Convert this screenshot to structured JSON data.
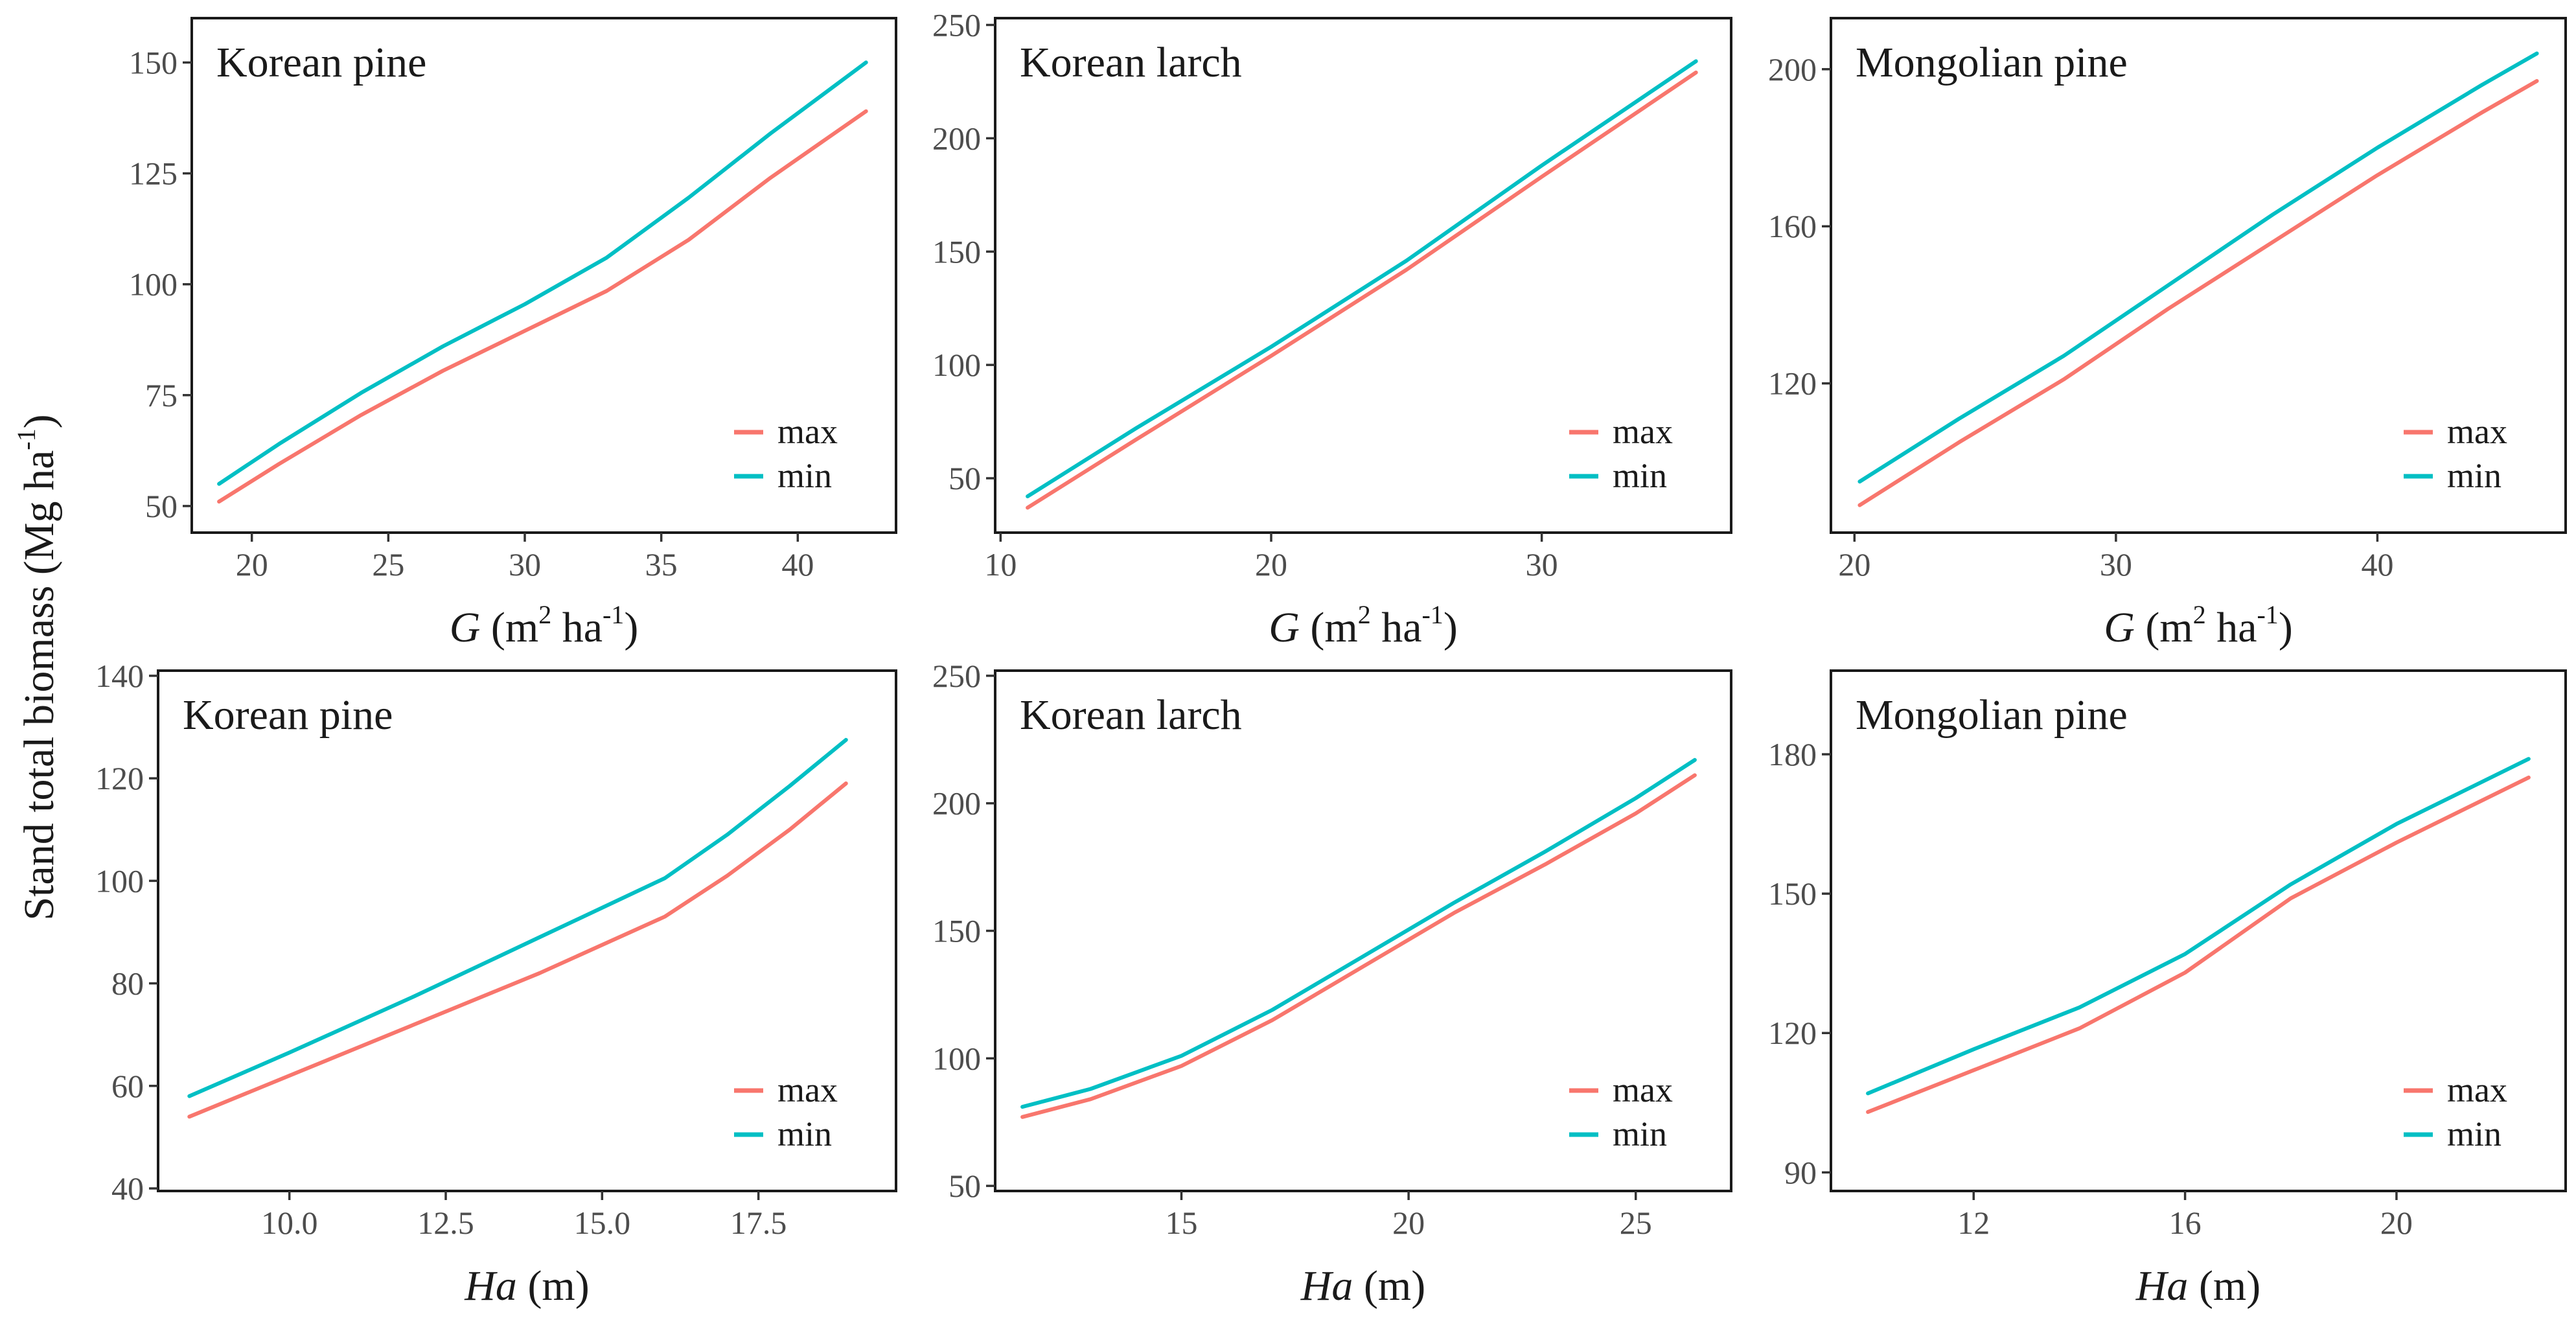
{
  "figure": {
    "ylabel_main": "Stand total biomass  (Mg ha",
    "ylabel_sup": "-1",
    "ylabel_close": ")"
  },
  "colors": {
    "max": "#F8766D",
    "min": "#00BFC4"
  },
  "chart_data": [
    {
      "type": "line",
      "title": "Korean pine",
      "x_var": "G",
      "x_rest": " (m",
      "x_sup1": "2",
      "x_mid": " ha",
      "x_sup2": "-1",
      "x_end": ")",
      "xlim": [
        17.8,
        43.6
      ],
      "ylim": [
        44,
        160
      ],
      "xticks": [
        20,
        25,
        30,
        35,
        40
      ],
      "xtick_labels": [
        "20",
        "25",
        "30",
        "35",
        "40"
      ],
      "yticks": [
        50,
        75,
        100,
        125,
        150
      ],
      "ytick_labels": [
        "50",
        "75",
        "100",
        "125",
        "150"
      ],
      "legend": [
        "max",
        "min"
      ],
      "series": [
        {
          "name": "max",
          "x": [
            18.8,
            21,
            24,
            27,
            30,
            33,
            36,
            39,
            42.5
          ],
          "y": [
            51,
            59.5,
            70.5,
            80.5,
            89.5,
            98.5,
            110,
            124,
            139
          ]
        },
        {
          "name": "min",
          "x": [
            18.8,
            21,
            24,
            27,
            30,
            33,
            36,
            39,
            42.5
          ],
          "y": [
            55,
            64,
            75.5,
            86,
            95.5,
            106,
            119.5,
            134,
            150
          ]
        }
      ]
    },
    {
      "type": "line",
      "title": "Korean larch",
      "x_var": "G",
      "x_rest": " (m",
      "x_sup1": "2",
      "x_mid": " ha",
      "x_sup2": "-1",
      "x_end": ")",
      "xlim": [
        9.8,
        37
      ],
      "ylim": [
        26,
        253
      ],
      "xticks": [
        10,
        20,
        30
      ],
      "xtick_labels": [
        "10",
        "20",
        "30"
      ],
      "yticks": [
        50,
        100,
        150,
        200,
        250
      ],
      "ytick_labels": [
        "50",
        "100",
        "150",
        "200",
        "250"
      ],
      "legend": [
        "max",
        "min"
      ],
      "series": [
        {
          "name": "max",
          "x": [
            11,
            15,
            20,
            25,
            30,
            35.7
          ],
          "y": [
            37,
            67,
            104,
            142,
            183,
            229
          ]
        },
        {
          "name": "min",
          "x": [
            11,
            15,
            20,
            25,
            30,
            35.7
          ],
          "y": [
            42,
            72,
            108,
            146,
            188,
            234
          ]
        }
      ]
    },
    {
      "type": "line",
      "title": "Mongolian pine",
      "x_var": "G",
      "x_rest": " (m",
      "x_sup1": "2",
      "x_mid": " ha",
      "x_sup2": "-1",
      "x_end": ")",
      "xlim": [
        19.1,
        47.2
      ],
      "ylim": [
        82,
        213
      ],
      "xticks": [
        20,
        30,
        40
      ],
      "xtick_labels": [
        "20",
        "30",
        "40"
      ],
      "yticks": [
        120,
        160,
        200
      ],
      "ytick_labels": [
        "120",
        "160",
        "200"
      ],
      "legend": [
        "max",
        "min"
      ],
      "series": [
        {
          "name": "max",
          "x": [
            20.2,
            24,
            28,
            32,
            36,
            40,
            44,
            46.1
          ],
          "y": [
            89,
            105,
            121,
            139,
            156,
            173,
            189,
            197
          ]
        },
        {
          "name": "min",
          "x": [
            20.2,
            24,
            28,
            32,
            36,
            40,
            44,
            46.1
          ],
          "y": [
            95,
            111,
            127,
            145,
            163,
            180,
            196,
            204
          ]
        }
      ]
    },
    {
      "type": "line",
      "title": "Korean pine",
      "x_var": "Ha",
      "x_rest": " (m)",
      "x_sup1": "",
      "x_mid": "",
      "x_sup2": "",
      "x_end": "",
      "xlim": [
        7.9,
        19.7
      ],
      "ylim": [
        39.5,
        141
      ],
      "xticks": [
        10,
        12.5,
        15,
        17.5
      ],
      "xtick_labels": [
        "10.0",
        "12.5",
        "15.0",
        "17.5"
      ],
      "yticks": [
        40,
        60,
        80,
        100,
        120,
        140
      ],
      "ytick_labels": [
        "40",
        "60",
        "80",
        "100",
        "120",
        "140"
      ],
      "legend": [
        "max",
        "min"
      ],
      "series": [
        {
          "name": "max",
          "x": [
            8.4,
            10,
            12,
            14,
            16,
            17,
            18,
            18.9
          ],
          "y": [
            54,
            62,
            72,
            82,
            93,
            101,
            110,
            119
          ]
        },
        {
          "name": "min",
          "x": [
            8.4,
            10,
            12,
            14,
            16,
            17,
            18,
            18.9
          ],
          "y": [
            58,
            66.5,
            77.5,
            89,
            100.5,
            109,
            118.5,
            127.5
          ]
        }
      ]
    },
    {
      "type": "line",
      "title": "Korean larch",
      "x_var": "Ha",
      "x_rest": " (m)",
      "x_sup1": "",
      "x_mid": "",
      "x_sup2": "",
      "x_end": "",
      "xlim": [
        10.9,
        27.1
      ],
      "ylim": [
        48,
        252
      ],
      "xticks": [
        15,
        20,
        25
      ],
      "xtick_labels": [
        "15",
        "20",
        "25"
      ],
      "yticks": [
        50,
        100,
        150,
        200,
        250
      ],
      "ytick_labels": [
        "50",
        "100",
        "150",
        "200",
        "250"
      ],
      "legend": [
        "max",
        "min"
      ],
      "series": [
        {
          "name": "max",
          "x": [
            11.5,
            13,
            15,
            17,
            19,
            21,
            23,
            25,
            26.3
          ],
          "y": [
            77,
            84,
            97,
            115,
            136,
            157,
            176,
            196,
            211
          ]
        },
        {
          "name": "min",
          "x": [
            11.5,
            13,
            15,
            17,
            19,
            21,
            23,
            25,
            26.3
          ],
          "y": [
            81,
            88,
            101,
            119,
            140,
            161,
            181,
            202,
            217
          ]
        }
      ]
    },
    {
      "type": "line",
      "title": "Mongolian pine",
      "x_var": "Ha",
      "x_rest": " (m)",
      "x_sup1": "",
      "x_mid": "",
      "x_sup2": "",
      "x_end": "",
      "xlim": [
        9.3,
        23.2
      ],
      "ylim": [
        86,
        198
      ],
      "xticks": [
        12,
        16,
        20
      ],
      "xtick_labels": [
        "12",
        "16",
        "20"
      ],
      "yticks": [
        90,
        120,
        150,
        180
      ],
      "ytick_labels": [
        "90",
        "120",
        "150",
        "180"
      ],
      "legend": [
        "max",
        "min"
      ],
      "series": [
        {
          "name": "max",
          "x": [
            10,
            12,
            14,
            16,
            18,
            20,
            22.5
          ],
          "y": [
            103,
            112,
            121,
            133,
            149,
            161,
            175
          ]
        },
        {
          "name": "min",
          "x": [
            10,
            12,
            14,
            16,
            18,
            20,
            22.5
          ],
          "y": [
            107,
            116.5,
            125.5,
            137,
            152,
            165,
            179
          ]
        }
      ]
    }
  ]
}
